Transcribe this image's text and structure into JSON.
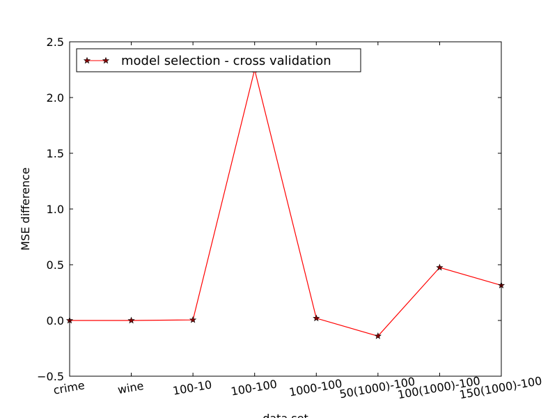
{
  "chart_data": {
    "type": "line",
    "title": "",
    "xlabel": "data set",
    "ylabel": "MSE difference",
    "ylim": [
      -0.5,
      2.5
    ],
    "yticks": [
      "−0.5",
      "0.0",
      "0.5",
      "1.0",
      "1.5",
      "2.0",
      "2.5"
    ],
    "categories": [
      "crime",
      "wine",
      "100-10",
      "100-100",
      "1000-100",
      "50(1000)-100",
      "100(1000)-100",
      "150(1000)-100"
    ],
    "series": [
      {
        "name": "model selection - cross validation",
        "color": "#ff0000",
        "marker": "star",
        "values": [
          0.0,
          0.0,
          0.005,
          2.25,
          0.02,
          -0.14,
          0.475,
          0.315
        ]
      }
    ],
    "legend_position": "top-left",
    "grid": false
  }
}
